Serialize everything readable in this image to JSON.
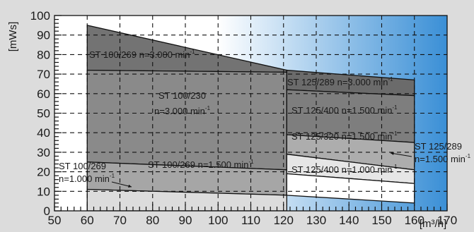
{
  "chart_data": {
    "type": "area",
    "xlabel": "[m³/h]",
    "ylabel": "[mWs]",
    "xlim": [
      50,
      170
    ],
    "ylim": [
      0,
      100
    ],
    "x_ticks": [
      "50",
      "60",
      "70",
      "80",
      "90",
      "100",
      "110",
      "120",
      "130",
      "140",
      "150",
      "160",
      "170"
    ],
    "y_ticks": [
      "0",
      "10",
      "20",
      "30",
      "40",
      "50",
      "60",
      "70",
      "80",
      "90",
      "100"
    ],
    "grid": "dashed",
    "background": {
      "left_color": "#ffffff",
      "right_color": "#3a8fd6",
      "gradient_start_x": 100
    },
    "regions": [
      {
        "name": "ST 100/269 n=3.000 min⁻¹",
        "x": [
          60,
          121
        ],
        "upper": [
          95,
          72
        ],
        "lower": [
          72,
          71
        ],
        "fill": "#737373"
      },
      {
        "name": "ST 100/230 n=3.000 min⁻¹",
        "x": [
          60,
          121
        ],
        "upper": [
          72,
          71
        ],
        "lower": [
          25,
          21
        ],
        "fill": "#8a8a8a"
      },
      {
        "name": "ST 100/269 n=1.500 min⁻¹",
        "x": [
          60,
          121
        ],
        "upper": [
          25,
          21
        ],
        "lower": [
          11,
          8
        ],
        "fill": "#a6a6a6"
      },
      {
        "name": "ST 100/269 n=1.000 min⁻¹",
        "x": [
          60,
          121
        ],
        "upper": [
          11,
          8
        ],
        "lower": [
          0,
          0
        ],
        "fill": "#dcdcdc"
      },
      {
        "name": "ST 125/289 n=3.000 min⁻¹",
        "x": [
          121,
          160
        ],
        "upper": [
          72,
          67
        ],
        "lower": [
          62,
          59
        ],
        "fill": "#6b6b6b"
      },
      {
        "name": "ST 125/400 n=1.500 min⁻¹",
        "x": [
          121,
          160
        ],
        "upper": [
          62,
          59
        ],
        "lower": [
          39,
          35
        ],
        "fill": "#7e7e7e"
      },
      {
        "name": "ST 125/320 n=1.500 min⁻¹",
        "x": [
          121,
          160
        ],
        "upper": [
          39,
          35
        ],
        "lower": [
          29,
          21
        ],
        "fill": "#adadad"
      },
      {
        "name": "ST 125/289 n=1.500 min⁻¹",
        "x": [
          121,
          160
        ],
        "upper": [
          29,
          21
        ],
        "lower": [
          19,
          14
        ],
        "fill": "#e6e6e6"
      },
      {
        "name": "ST 125/400 n=1.000 min⁻¹",
        "x": [
          121,
          160
        ],
        "upper": [
          19,
          14
        ],
        "lower": [
          8,
          4
        ],
        "fill": "#ffffff"
      }
    ],
    "labels": {
      "l1": {
        "text": "ST 100/269 n=3.000 min",
        "sup": "-1"
      },
      "l2a": {
        "text": "ST 100/230"
      },
      "l2b": {
        "text": "n=3.000 min",
        "sup": "-1"
      },
      "l3": {
        "text": "ST 100/269 n=1.500 min",
        "sup": "-1"
      },
      "l4a": {
        "text": "ST 100/269"
      },
      "l4b": {
        "text": "n=1.000 min",
        "sup": "-1"
      },
      "r1": {
        "text": "ST 125/289 n=3.000 min",
        "sup": "-1"
      },
      "r2": {
        "text": "ST 125/400 n=1.500 min",
        "sup": "-1"
      },
      "r3": {
        "text": "ST 125/320 n=1.500 min",
        "sup": "-1"
      },
      "r4a": {
        "text": "ST 125/289"
      },
      "r4b": {
        "text": "n=1.500 min",
        "sup": "-1"
      },
      "r5": {
        "text": "ST 125/400 n=1.000 min",
        "sup": "-1"
      }
    }
  }
}
